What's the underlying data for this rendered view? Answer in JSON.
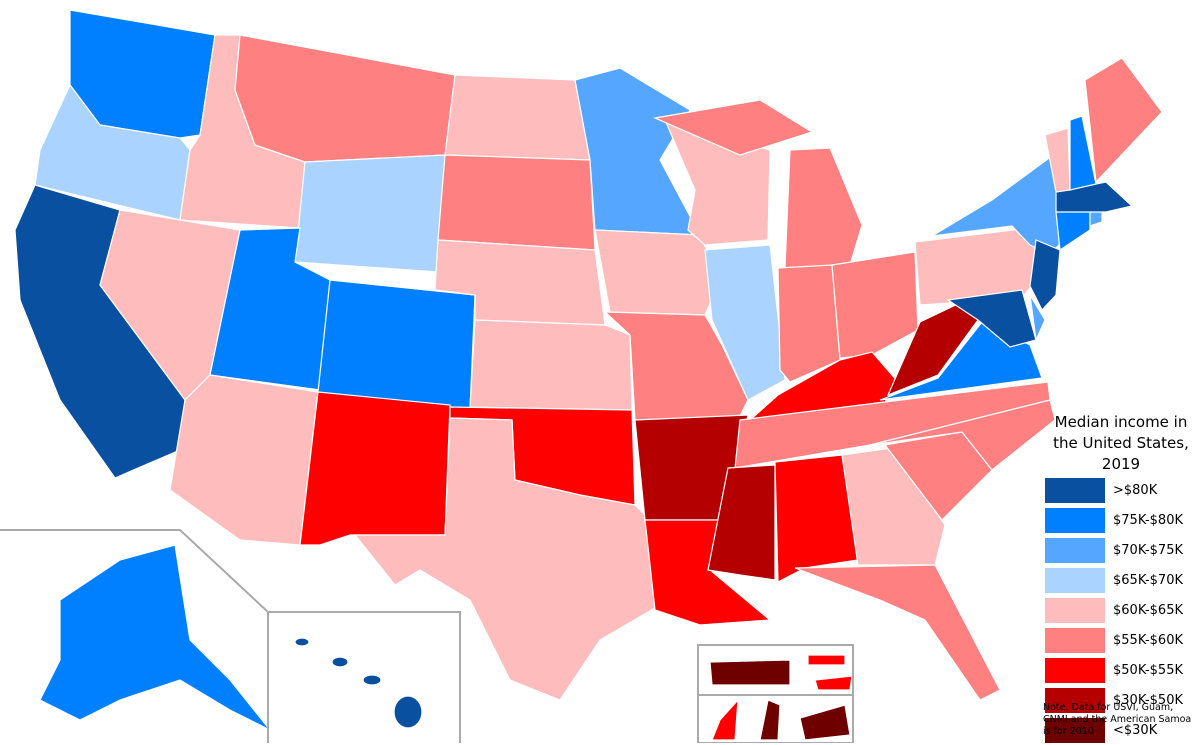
{
  "map": {
    "title": "Median income in the United States, 2019",
    "legend": [
      {
        "label": ">$80K",
        "color": "#0a50a0"
      },
      {
        "label": "$75K-$80K",
        "color": "#0080ff"
      },
      {
        "label": "$70K-$75K",
        "color": "#55a6ff"
      },
      {
        "label": "$65K-$70K",
        "color": "#aad4ff"
      },
      {
        "label": "$60K-$65K",
        "color": "#ffbcbc"
      },
      {
        "label": "$55K-$60K",
        "color": "#ff8080"
      },
      {
        "label": "$50K-$55K",
        "color": "#ff0000"
      },
      {
        "label": "$30K-$50K",
        "color": "#b40000"
      },
      {
        "label": "<$30K",
        "color": "#6e0000"
      }
    ],
    "note": "Note. Data for USVI, Guam, CNMI and the American Samoa is for 2010"
  }
}
